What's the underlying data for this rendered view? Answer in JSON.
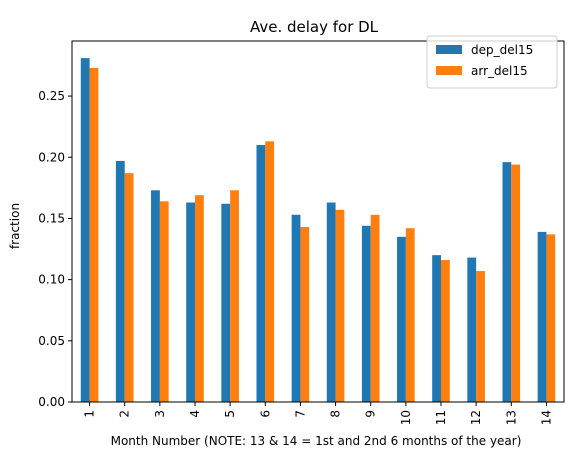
{
  "chart_data": {
    "type": "bar",
    "title": "Ave. delay for DL",
    "xlabel": "Month Number (NOTE: 13 & 14 = 1st and 2nd 6 months of the year)",
    "ylabel": "fraction",
    "categories": [
      "1",
      "2",
      "3",
      "4",
      "5",
      "6",
      "7",
      "8",
      "9",
      "10",
      "11",
      "12",
      "13",
      "14"
    ],
    "series": [
      {
        "name": "dep_del15",
        "color": "#1f77b4",
        "values": [
          0.281,
          0.197,
          0.173,
          0.163,
          0.162,
          0.21,
          0.153,
          0.163,
          0.144,
          0.135,
          0.12,
          0.118,
          0.196,
          0.139
        ]
      },
      {
        "name": "arr_del15",
        "color": "#ff7f0e",
        "values": [
          0.273,
          0.187,
          0.164,
          0.169,
          0.173,
          0.213,
          0.143,
          0.157,
          0.153,
          0.142,
          0.116,
          0.107,
          0.194,
          0.137
        ]
      }
    ],
    "ylim": [
      0,
      0.295
    ],
    "yticks": [
      "0.00",
      "0.05",
      "0.10",
      "0.15",
      "0.20",
      "0.25"
    ],
    "grid": false,
    "legend_position": "top-right"
  }
}
